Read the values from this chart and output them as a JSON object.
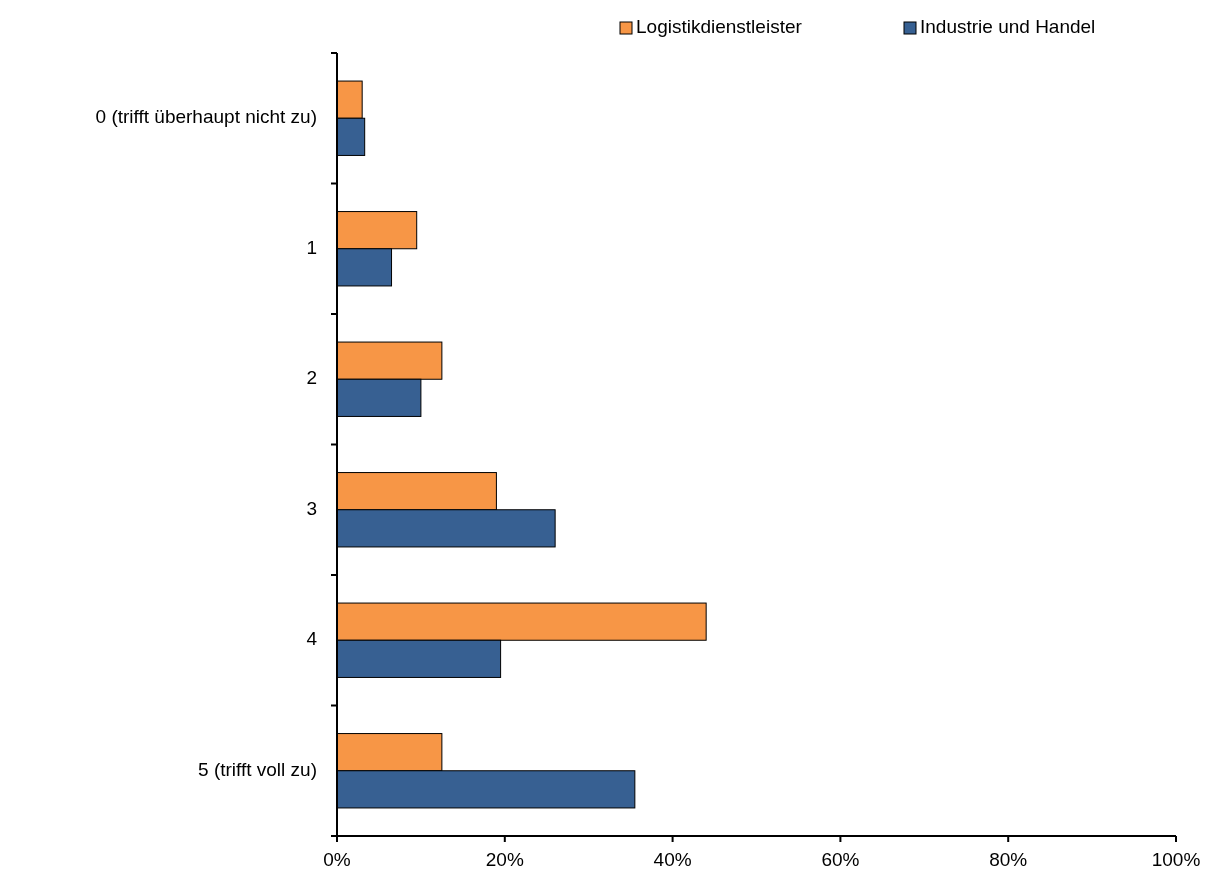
{
  "chart_data": {
    "type": "bar",
    "orientation": "horizontal",
    "categories": [
      "0 (trifft überhaupt nicht zu)",
      "1",
      "2",
      "3",
      "4",
      "5 (trifft voll zu)"
    ],
    "series": [
      {
        "name": "Logistikdienstleister",
        "color": "#f79646",
        "values": [
          3,
          9.5,
          12.5,
          19,
          44,
          12.5
        ]
      },
      {
        "name": "Industrie und Handel",
        "color": "#376092",
        "values": [
          3.3,
          6.5,
          10,
          26,
          19.5,
          35.5
        ]
      }
    ],
    "xlim": [
      0,
      100
    ],
    "xticks": [
      {
        "value": 0,
        "label": "0%"
      },
      {
        "value": 20,
        "label": "20%"
      },
      {
        "value": 40,
        "label": "40%"
      },
      {
        "value": 60,
        "label": "60%"
      },
      {
        "value": 80,
        "label": "80%"
      },
      {
        "value": 100,
        "label": "100%"
      }
    ],
    "grid": false,
    "legend": "top right"
  }
}
